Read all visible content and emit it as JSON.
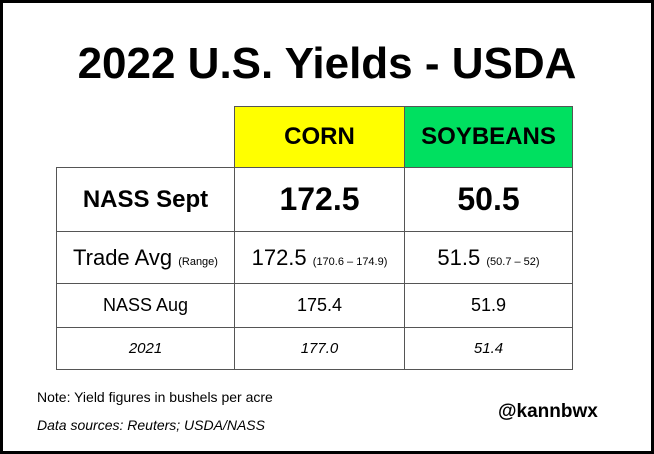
{
  "header": {
    "title": "2022 U.S. Yields - USDA"
  },
  "table": {
    "columns": [
      "CORN",
      "SOYBEANS"
    ],
    "rows": [
      {
        "label": "NASS Sept",
        "values": [
          "172.5",
          "50.5"
        ]
      },
      {
        "label": "Trade Avg",
        "label_note": "(Range)",
        "values": [
          "172.5",
          "51.5"
        ],
        "ranges": [
          "(170.6 – 174.9)",
          "(50.7 – 52)"
        ]
      },
      {
        "label": "NASS Aug",
        "values": [
          "175.4",
          "51.9"
        ]
      },
      {
        "label": "2021",
        "values": [
          "177.0",
          "51.4"
        ]
      }
    ]
  },
  "footer": {
    "note": "Note: Yield figures in bushels per acre",
    "sources": "Data sources: Reuters; USDA/NASS",
    "handle": "@kannbwx"
  }
}
